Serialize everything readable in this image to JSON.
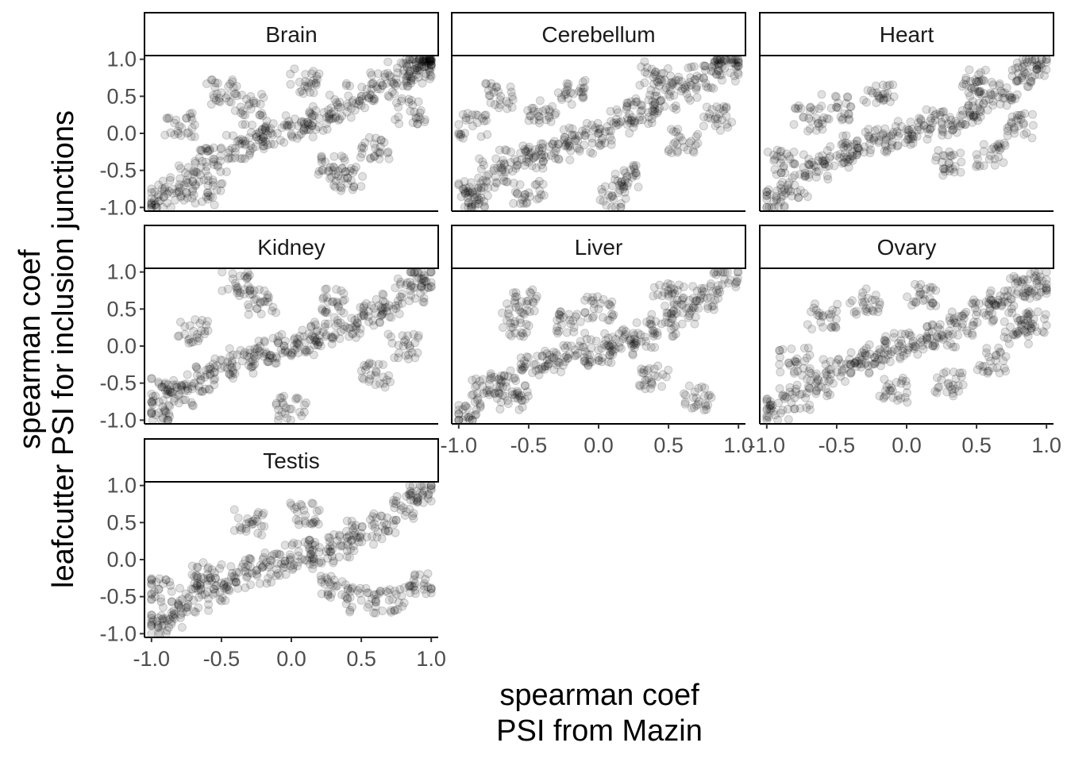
{
  "chart_data": {
    "type": "scatter",
    "layout": "faceted 3-column grid, shared axes",
    "xlabel_lines": [
      "spearman coef",
      "PSI from Mazin"
    ],
    "ylabel_lines": [
      "spearman coef",
      "leafcutter PSI for inclusion junctions"
    ],
    "xlim": [
      -1.05,
      1.05
    ],
    "ylim": [
      -1.05,
      1.05
    ],
    "x_ticks": [
      -1.0,
      -0.5,
      0.0,
      0.5,
      1.0
    ],
    "y_ticks": [
      -1.0,
      -0.5,
      0.0,
      0.5,
      1.0
    ],
    "x_tick_labels": [
      "-1.0",
      "-0.5",
      "0.0",
      "0.5",
      "1.0"
    ],
    "y_tick_labels": [
      "-1.0",
      "-0.5",
      "0.0",
      "0.5",
      "1.0"
    ],
    "grid": false,
    "point_color": "#000000",
    "point_opacity": 0.12,
    "panels": [
      {
        "name": "Brain",
        "points": [
          [
            -0.95,
            -0.92
          ],
          [
            -0.85,
            -0.75
          ],
          [
            -0.7,
            -0.55
          ],
          [
            -0.55,
            -0.35
          ],
          [
            -0.4,
            -0.2
          ],
          [
            -0.25,
            -0.05
          ],
          [
            -0.1,
            0.0
          ],
          [
            0.05,
            0.1
          ],
          [
            0.2,
            0.2
          ],
          [
            0.35,
            0.35
          ],
          [
            0.5,
            0.5
          ],
          [
            0.65,
            0.65
          ],
          [
            0.8,
            0.8
          ],
          [
            0.93,
            0.93
          ],
          [
            -0.5,
            0.55
          ],
          [
            0.3,
            -0.45
          ],
          [
            -0.3,
            0.4
          ],
          [
            0.6,
            -0.2
          ],
          [
            0.85,
            0.3
          ],
          [
            -0.8,
            0.1
          ],
          [
            0.1,
            0.7
          ],
          [
            0.4,
            -0.6
          ],
          [
            -0.6,
            -0.8
          ],
          [
            0.95,
            0.97
          ],
          [
            0.9,
            0.85
          ]
        ]
      },
      {
        "name": "Cerebellum",
        "points": [
          [
            -0.9,
            -0.8
          ],
          [
            -0.75,
            -0.5
          ],
          [
            -0.6,
            -0.35
          ],
          [
            -0.45,
            -0.3
          ],
          [
            -0.3,
            -0.2
          ],
          [
            -0.15,
            -0.1
          ],
          [
            0.0,
            0.0
          ],
          [
            0.15,
            0.15
          ],
          [
            0.3,
            0.3
          ],
          [
            0.45,
            0.45
          ],
          [
            0.6,
            0.6
          ],
          [
            0.75,
            0.75
          ],
          [
            0.9,
            0.88
          ],
          [
            -0.9,
            0.1
          ],
          [
            -0.7,
            0.5
          ],
          [
            -0.5,
            -0.8
          ],
          [
            0.2,
            -0.6
          ],
          [
            0.6,
            -0.1
          ],
          [
            -0.2,
            0.55
          ],
          [
            0.4,
            0.8
          ],
          [
            0.85,
            0.2
          ],
          [
            -0.85,
            -0.9
          ],
          [
            0.95,
            0.95
          ],
          [
            0.1,
            -0.85
          ],
          [
            -0.4,
            0.3
          ]
        ]
      },
      {
        "name": "Heart",
        "points": [
          [
            -0.95,
            -0.92
          ],
          [
            -0.8,
            -0.7
          ],
          [
            -0.65,
            -0.45
          ],
          [
            -0.5,
            -0.3
          ],
          [
            -0.35,
            -0.2
          ],
          [
            -0.2,
            -0.1
          ],
          [
            -0.05,
            0.0
          ],
          [
            0.1,
            0.05
          ],
          [
            0.25,
            0.15
          ],
          [
            0.4,
            0.25
          ],
          [
            0.55,
            0.4
          ],
          [
            0.7,
            0.55
          ],
          [
            0.85,
            0.8
          ],
          [
            0.93,
            0.92
          ],
          [
            -0.5,
            0.35
          ],
          [
            0.3,
            -0.4
          ],
          [
            -0.7,
            0.2
          ],
          [
            0.6,
            -0.3
          ],
          [
            0.8,
            0.1
          ],
          [
            -0.2,
            0.5
          ],
          [
            0.5,
            0.7
          ],
          [
            -0.9,
            -0.4
          ]
        ]
      },
      {
        "name": "Kidney",
        "points": [
          [
            -0.95,
            -0.9
          ],
          [
            -0.8,
            -0.65
          ],
          [
            -0.65,
            -0.45
          ],
          [
            -0.5,
            -0.3
          ],
          [
            -0.35,
            -0.2
          ],
          [
            -0.2,
            -0.1
          ],
          [
            -0.05,
            0.0
          ],
          [
            0.1,
            0.05
          ],
          [
            0.25,
            0.15
          ],
          [
            0.4,
            0.25
          ],
          [
            0.55,
            0.4
          ],
          [
            0.7,
            0.55
          ],
          [
            0.85,
            0.75
          ],
          [
            0.95,
            0.95
          ],
          [
            -0.4,
            0.85
          ],
          [
            0.0,
            -0.85
          ],
          [
            -0.7,
            0.2
          ],
          [
            0.3,
            0.6
          ],
          [
            0.6,
            -0.4
          ],
          [
            -0.9,
            -0.6
          ],
          [
            0.8,
            0.0
          ],
          [
            -0.2,
            0.6
          ]
        ]
      },
      {
        "name": "Liver",
        "points": [
          [
            -0.95,
            -0.95
          ],
          [
            -0.8,
            -0.6
          ],
          [
            -0.7,
            -0.5
          ],
          [
            -0.6,
            0.3
          ],
          [
            -0.55,
            0.6
          ],
          [
            -0.45,
            -0.25
          ],
          [
            -0.3,
            -0.2
          ],
          [
            -0.15,
            -0.1
          ],
          [
            0.0,
            -0.05
          ],
          [
            0.15,
            0.05
          ],
          [
            0.3,
            0.15
          ],
          [
            0.45,
            0.3
          ],
          [
            0.6,
            0.45
          ],
          [
            0.75,
            0.65
          ],
          [
            0.9,
            0.9
          ],
          [
            0.0,
            0.5
          ],
          [
            0.4,
            -0.4
          ],
          [
            0.7,
            -0.7
          ],
          [
            -0.2,
            0.3
          ],
          [
            0.5,
            0.7
          ],
          [
            -0.6,
            -0.7
          ]
        ]
      },
      {
        "name": "Ovary",
        "points": [
          [
            -0.95,
            -0.88
          ],
          [
            -0.8,
            -0.7
          ],
          [
            -0.65,
            -0.5
          ],
          [
            -0.5,
            -0.35
          ],
          [
            -0.35,
            -0.2
          ],
          [
            -0.2,
            -0.1
          ],
          [
            -0.05,
            0.0
          ],
          [
            0.1,
            0.05
          ],
          [
            0.25,
            0.15
          ],
          [
            0.4,
            0.3
          ],
          [
            0.55,
            0.45
          ],
          [
            0.7,
            0.6
          ],
          [
            0.85,
            0.78
          ],
          [
            0.93,
            0.85
          ],
          [
            -0.6,
            0.4
          ],
          [
            0.3,
            -0.5
          ],
          [
            -0.3,
            0.6
          ],
          [
            0.6,
            -0.2
          ],
          [
            0.8,
            0.2
          ],
          [
            -0.8,
            -0.2
          ],
          [
            0.9,
            0.3
          ],
          [
            0.1,
            0.7
          ],
          [
            -0.1,
            -0.6
          ]
        ]
      },
      {
        "name": "Testis",
        "points": [
          [
            -0.95,
            -0.92
          ],
          [
            -0.85,
            -0.75
          ],
          [
            -0.7,
            -0.55
          ],
          [
            -0.55,
            -0.4
          ],
          [
            -0.4,
            -0.25
          ],
          [
            -0.25,
            -0.15
          ],
          [
            -0.1,
            -0.05
          ],
          [
            0.05,
            0.05
          ],
          [
            0.2,
            0.1
          ],
          [
            0.35,
            0.2
          ],
          [
            0.5,
            0.35
          ],
          [
            0.65,
            0.45
          ],
          [
            0.8,
            0.7
          ],
          [
            0.95,
            0.93
          ],
          [
            -0.3,
            0.5
          ],
          [
            0.3,
            -0.35
          ],
          [
            0.5,
            -0.55
          ],
          [
            0.7,
            -0.55
          ],
          [
            -0.6,
            -0.2
          ],
          [
            0.95,
            -0.32
          ],
          [
            -0.95,
            -0.4
          ],
          [
            0.1,
            0.6
          ]
        ]
      }
    ]
  }
}
